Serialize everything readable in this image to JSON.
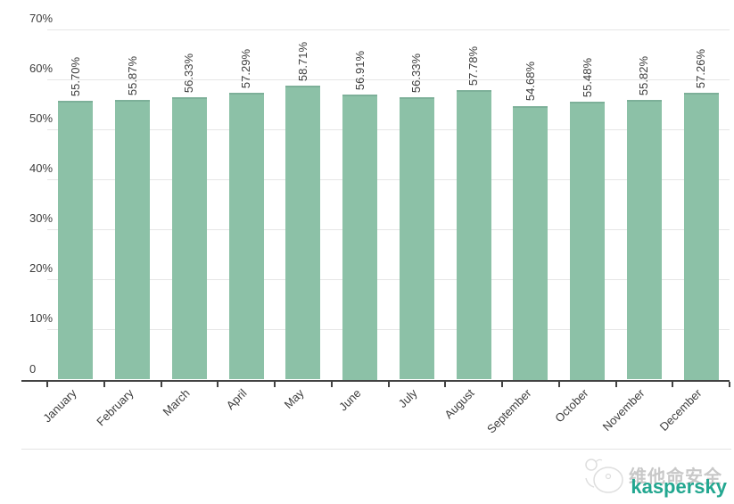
{
  "chart_data": {
    "type": "bar",
    "categories": [
      "January",
      "February",
      "March",
      "April",
      "May",
      "June",
      "July",
      "August",
      "September",
      "October",
      "November",
      "December"
    ],
    "values": [
      55.7,
      55.87,
      56.33,
      57.29,
      58.71,
      56.91,
      56.33,
      57.78,
      54.68,
      55.48,
      55.82,
      57.26
    ],
    "value_labels": [
      "55.70%",
      "55.87%",
      "56.33%",
      "57.29%",
      "58.71%",
      "56.91%",
      "56.33%",
      "57.78%",
      "54.68%",
      "55.48%",
      "55.82%",
      "57.26%"
    ],
    "title": "",
    "xlabel": "",
    "ylabel": "",
    "ylim": [
      0,
      70
    ],
    "ytick_step": 10,
    "ytick_labels": [
      "0",
      "10%",
      "20%",
      "30%",
      "40%",
      "50%",
      "60%",
      "70%"
    ],
    "grid": true,
    "legend": false,
    "bar_color": "#8cc1a7",
    "bar_edge_color": "#7db099"
  },
  "footer": {
    "brand_cn": "维他命安全",
    "brand": "kaspersky",
    "brand_color": "#23a790",
    "brand_cn_color": "#c8c8c8",
    "logo_icon": "mascot-sketch-icon"
  }
}
